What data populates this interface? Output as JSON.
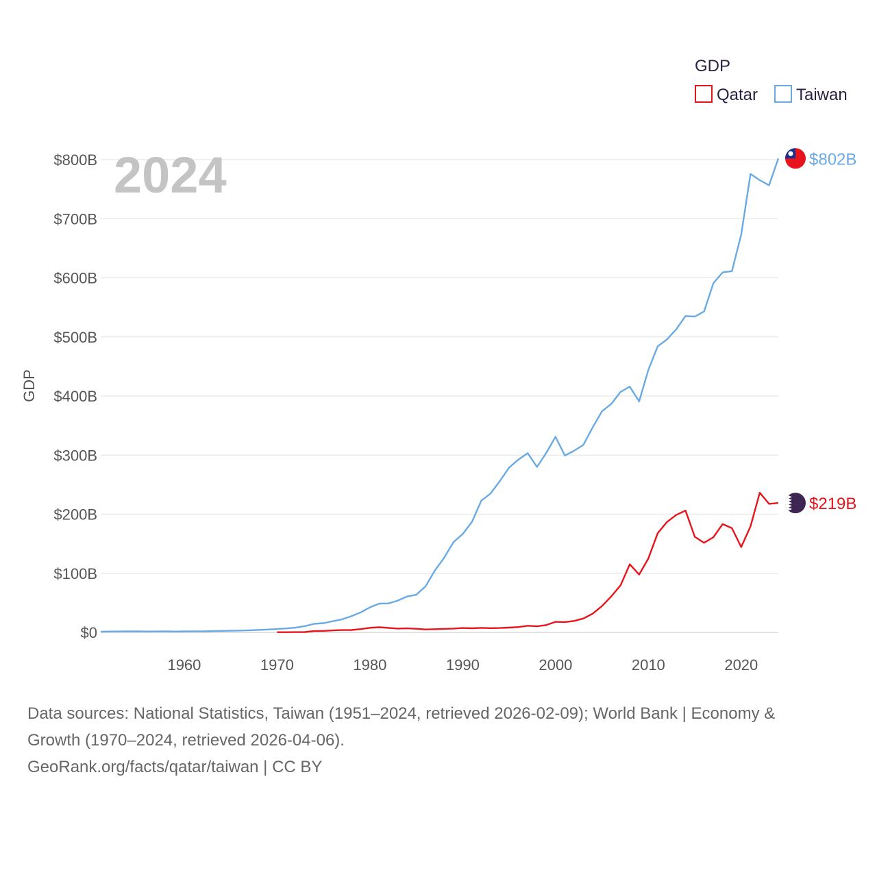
{
  "chart_data": {
    "type": "line",
    "year_label": "2024",
    "ylabel": "GDP",
    "ylim": [
      0,
      800
    ],
    "y_ticks": [
      {
        "value": 0,
        "label": "$0"
      },
      {
        "value": 100,
        "label": "$100B"
      },
      {
        "value": 200,
        "label": "$200B"
      },
      {
        "value": 300,
        "label": "$300B"
      },
      {
        "value": 400,
        "label": "$400B"
      },
      {
        "value": 500,
        "label": "$500B"
      },
      {
        "value": 600,
        "label": "$600B"
      },
      {
        "value": 700,
        "label": "$700B"
      },
      {
        "value": 800,
        "label": "$800B"
      }
    ],
    "xlim": [
      1951,
      2024
    ],
    "x_ticks": [
      {
        "value": 1960,
        "label": "1960"
      },
      {
        "value": 1970,
        "label": "1970"
      },
      {
        "value": 1980,
        "label": "1980"
      },
      {
        "value": 1990,
        "label": "1990"
      },
      {
        "value": 2000,
        "label": "2000"
      },
      {
        "value": 2010,
        "label": "2010"
      },
      {
        "value": 2020,
        "label": "2020"
      }
    ],
    "legend_title": "GDP",
    "series": [
      {
        "name": "Qatar",
        "color": "#e8141c",
        "end_label": "$219B",
        "flag_icon": "qatar-flag-icon",
        "x": [
          1970,
          1971,
          1972,
          1973,
          1974,
          1975,
          1976,
          1977,
          1978,
          1979,
          1980,
          1981,
          1982,
          1983,
          1984,
          1985,
          1986,
          1987,
          1988,
          1989,
          1990,
          1991,
          1992,
          1993,
          1994,
          1995,
          1996,
          1997,
          1998,
          1999,
          2000,
          2001,
          2002,
          2003,
          2004,
          2005,
          2006,
          2007,
          2008,
          2009,
          2010,
          2011,
          2012,
          2013,
          2014,
          2015,
          2016,
          2017,
          2018,
          2019,
          2020,
          2021,
          2022,
          2023,
          2024
        ],
        "values": [
          0.3,
          0.4,
          0.5,
          0.6,
          2.4,
          2.5,
          3.4,
          3.9,
          4.1,
          5.6,
          7.8,
          8.7,
          7.6,
          6.5,
          6.8,
          6.2,
          5.0,
          5.4,
          6.0,
          6.5,
          7.4,
          7.0,
          7.6,
          7.2,
          7.4,
          8.1,
          9.1,
          11.3,
          10.3,
          12.4,
          17.8,
          17.5,
          19.4,
          23.5,
          31.7,
          44.5,
          60.9,
          79.7,
          115.3,
          97.8,
          125.1,
          167.8,
          186.8,
          198.7,
          206.2,
          161.7,
          151.7,
          161.1,
          183.3,
          176.4,
          144.4,
          179.6,
          236.3,
          217.5,
          219.0
        ]
      },
      {
        "name": "Taiwan",
        "color": "#6aaae4",
        "end_label": "$802B",
        "flag_icon": "taiwan-flag-icon",
        "x": [
          1951,
          1952,
          1953,
          1954,
          1955,
          1956,
          1957,
          1958,
          1959,
          1960,
          1961,
          1962,
          1963,
          1964,
          1965,
          1966,
          1967,
          1968,
          1969,
          1970,
          1971,
          1972,
          1973,
          1974,
          1975,
          1976,
          1977,
          1978,
          1979,
          1980,
          1981,
          1982,
          1983,
          1984,
          1985,
          1986,
          1987,
          1988,
          1989,
          1990,
          1991,
          1992,
          1993,
          1994,
          1995,
          1996,
          1997,
          1998,
          1999,
          2000,
          2001,
          2002,
          2003,
          2004,
          2005,
          2006,
          2007,
          2008,
          2009,
          2010,
          2011,
          2012,
          2013,
          2014,
          2015,
          2016,
          2017,
          2018,
          2019,
          2020,
          2021,
          2022,
          2023,
          2024
        ],
        "values": [
          1.2,
          1.5,
          1.6,
          1.7,
          1.9,
          1.5,
          1.6,
          1.7,
          1.5,
          1.7,
          1.8,
          1.9,
          2.2,
          2.5,
          2.8,
          3.1,
          3.6,
          4.2,
          4.9,
          5.7,
          6.7,
          8.0,
          10.7,
          14.5,
          15.7,
          18.9,
          22.2,
          27.4,
          33.9,
          42.3,
          48.7,
          49.0,
          53.8,
          60.7,
          63.6,
          78.2,
          104.7,
          126.5,
          152.6,
          166.6,
          187.1,
          222.9,
          235.0,
          256.2,
          279.0,
          292.5,
          303.3,
          280.0,
          303.8,
          331.0,
          299.3,
          307.4,
          317.4,
          346.9,
          374.1,
          386.5,
          406.9,
          415.9,
          390.8,
          444.3,
          483.9,
          495.8,
          512.9,
          535.3,
          534.5,
          543.1,
          590.8,
          609.2,
          611.4,
          673.3,
          775.8,
          765.2,
          756.6,
          802.0
        ]
      }
    ]
  },
  "footer": {
    "sources_line1": "Data sources: National Statistics, Taiwan (1951–2024, retrieved 2026-02-09); World Bank | Economy &",
    "sources_line2": "Growth (1970–2024, retrieved 2026-04-06).",
    "credit": "GeoRank.org/facts/qatar/taiwan | CC BY"
  }
}
